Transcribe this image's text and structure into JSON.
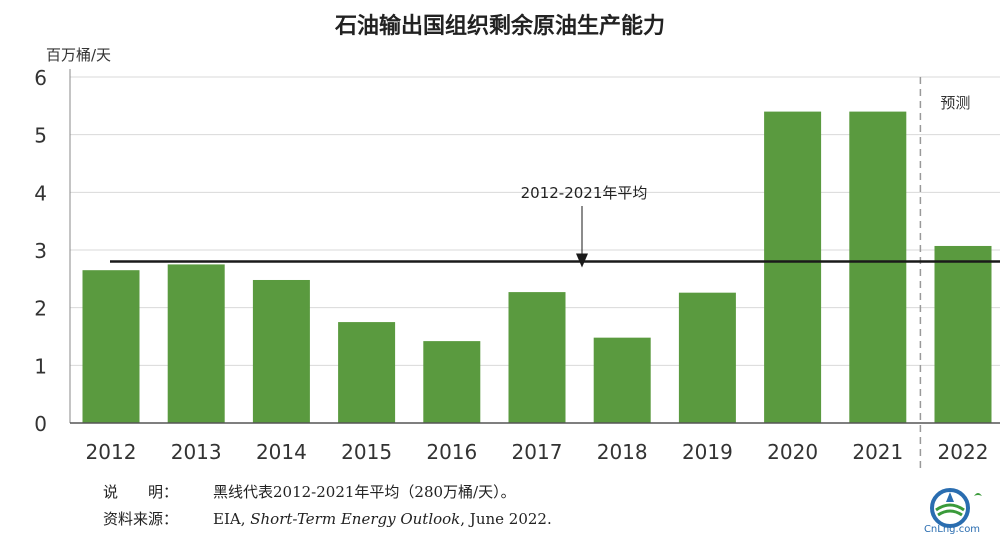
{
  "chart_data": {
    "type": "bar",
    "title": "石油输出国组织剩余原油生产能力",
    "ylabel": "百万桶/天",
    "categories": [
      "2012",
      "2013",
      "2014",
      "2015",
      "2016",
      "2017",
      "2018",
      "2019",
      "2020",
      "2021",
      "2022"
    ],
    "values": [
      2.65,
      2.75,
      2.48,
      1.75,
      1.42,
      2.27,
      1.48,
      2.26,
      5.4,
      5.4,
      3.07
    ],
    "ylim": [
      0,
      6
    ],
    "yticks": [
      "0",
      "1",
      "2",
      "3",
      "4",
      "5",
      "6"
    ],
    "grid": true,
    "bar_color": "#5a9a3f",
    "average": {
      "value": 2.8,
      "label": "2012-2021年平均"
    },
    "forecast": {
      "label": "预测",
      "start_category": "2022"
    }
  },
  "notes": {
    "note1_label": "说　　明：",
    "note1_text": "黑线代表2012-2021年平均（280万桶/天）。",
    "note2_label": "资料来源：",
    "note2_text_a": "EIA, ",
    "note2_text_b": "Short-Term Energy Outlook",
    "note2_text_c": ", June 2022."
  },
  "logo": {
    "text": "CnLng.com"
  }
}
